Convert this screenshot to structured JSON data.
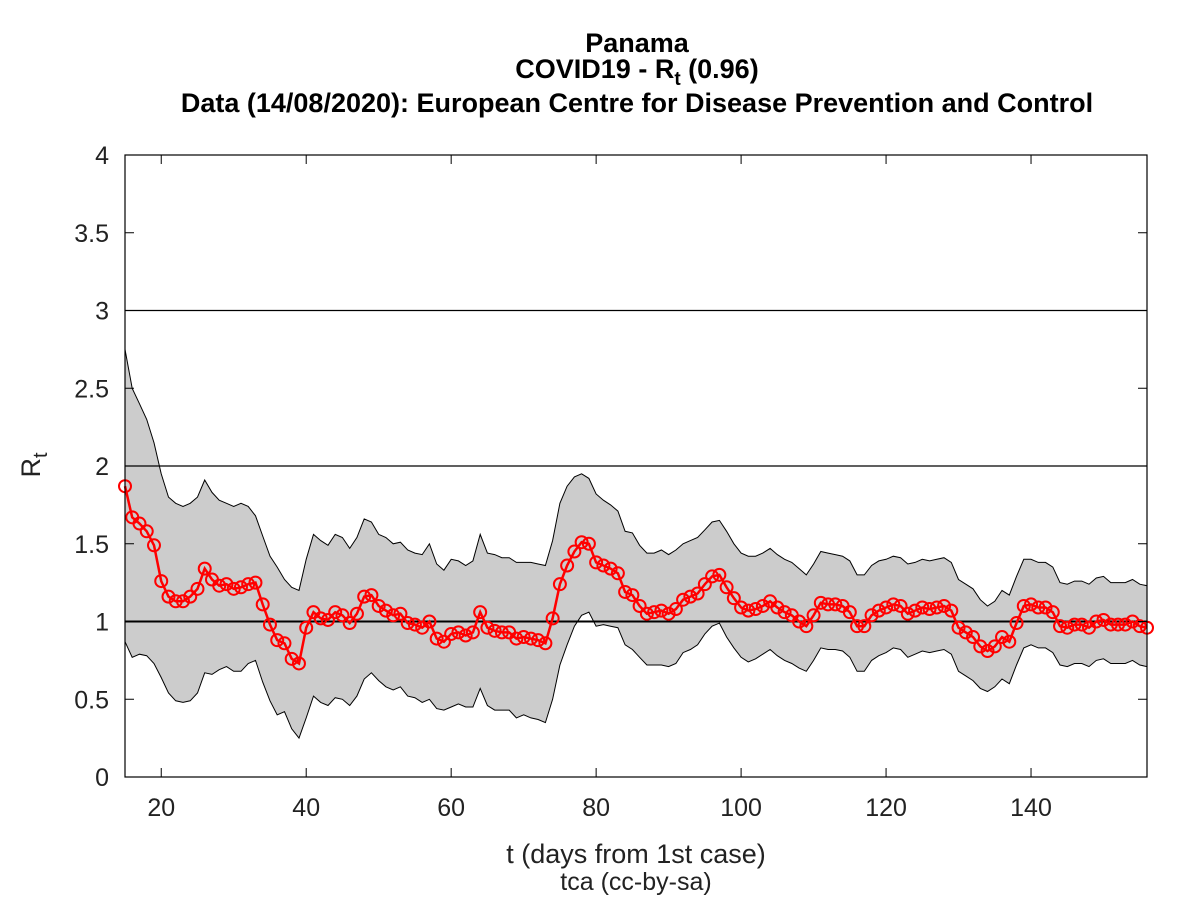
{
  "chart_data": {
    "type": "line",
    "title_lines": [
      "Panama",
      "Data (14/08/2020): European Centre for Disease Prevention and Control"
    ],
    "title_rt": {
      "prefix": "COVID19 - R",
      "sub": "t",
      "suffix": " (0.96)"
    },
    "xlabel": "t (days from 1st case)",
    "ylabel": {
      "main": "R",
      "sub": "t"
    },
    "credit": "tca (cc-by-sa)",
    "xlim": [
      15,
      156
    ],
    "ylim": [
      0,
      4
    ],
    "xticks": [
      20,
      40,
      60,
      80,
      100,
      120,
      140
    ],
    "yticks": [
      0,
      0.5,
      1,
      1.5,
      2,
      2.5,
      3,
      3.5,
      4
    ],
    "ytick_labels": [
      "0",
      "0.5",
      "1",
      "1.5",
      "2",
      "2.5",
      "3",
      "3.5",
      "4"
    ],
    "reference_lines": [
      1,
      2,
      3
    ],
    "colors": {
      "series": "#ff0000",
      "band": "#cccccc",
      "band_edge": "#000000",
      "reference": "#000000"
    },
    "x": [
      15,
      16,
      17,
      18,
      19,
      20,
      21,
      22,
      23,
      24,
      25,
      26,
      27,
      28,
      29,
      30,
      31,
      32,
      33,
      34,
      35,
      36,
      37,
      38,
      39,
      40,
      41,
      42,
      43,
      44,
      45,
      46,
      47,
      48,
      49,
      50,
      51,
      52,
      53,
      54,
      55,
      56,
      57,
      58,
      59,
      60,
      61,
      62,
      63,
      64,
      65,
      66,
      67,
      68,
      69,
      70,
      71,
      72,
      73,
      74,
      75,
      76,
      77,
      78,
      79,
      80,
      81,
      82,
      83,
      84,
      85,
      86,
      87,
      88,
      89,
      90,
      91,
      92,
      93,
      94,
      95,
      96,
      97,
      98,
      99,
      100,
      101,
      102,
      103,
      104,
      105,
      106,
      107,
      108,
      109,
      110,
      111,
      112,
      113,
      114,
      115,
      116,
      117,
      118,
      119,
      120,
      121,
      122,
      123,
      124,
      125,
      126,
      127,
      128,
      129,
      130,
      131,
      132,
      133,
      134,
      135,
      136,
      137,
      138,
      139,
      140,
      141,
      142,
      143,
      144,
      145,
      146,
      147,
      148,
      149,
      150,
      151,
      152,
      153,
      154,
      155,
      156
    ],
    "series": [
      {
        "values": [
          1.87,
          1.67,
          1.63,
          1.58,
          1.49,
          1.26,
          1.16,
          1.13,
          1.13,
          1.16,
          1.21,
          1.34,
          1.27,
          1.23,
          1.24,
          1.21,
          1.22,
          1.24,
          1.25,
          1.11,
          0.98,
          0.88,
          0.86,
          0.76,
          0.73,
          0.96,
          1.06,
          1.02,
          1.01,
          1.06,
          1.04,
          0.99,
          1.05,
          1.16,
          1.17,
          1.1,
          1.07,
          1.04,
          1.05,
          0.99,
          0.98,
          0.96,
          1.0,
          0.89,
          0.87,
          0.92,
          0.93,
          0.91,
          0.93,
          1.06,
          0.96,
          0.94,
          0.93,
          0.93,
          0.89,
          0.9,
          0.89,
          0.88,
          0.86,
          1.02,
          1.24,
          1.36,
          1.45,
          1.51,
          1.5,
          1.38,
          1.36,
          1.34,
          1.31,
          1.19,
          1.17,
          1.1,
          1.05,
          1.06,
          1.07,
          1.05,
          1.08,
          1.14,
          1.16,
          1.18,
          1.24,
          1.29,
          1.3,
          1.22,
          1.15,
          1.09,
          1.07,
          1.08,
          1.1,
          1.13,
          1.09,
          1.06,
          1.04,
          1.0,
          0.97,
          1.04,
          1.12,
          1.11,
          1.11,
          1.1,
          1.06,
          0.97,
          0.97,
          1.04,
          1.07,
          1.09,
          1.11,
          1.1,
          1.05,
          1.07,
          1.09,
          1.08,
          1.09,
          1.1,
          1.07,
          0.96,
          0.93,
          0.9,
          0.84,
          0.81,
          0.84,
          0.9,
          0.87,
          0.99,
          1.1,
          1.11,
          1.09,
          1.09,
          1.06,
          0.97,
          0.96,
          0.98,
          0.98,
          0.96,
          1.0,
          1.01,
          0.98,
          0.98,
          0.98,
          1.0,
          0.97,
          0.96
        ]
      }
    ],
    "band_upper": [
      2.75,
      2.5,
      2.4,
      2.3,
      2.15,
      1.95,
      1.8,
      1.76,
      1.74,
      1.76,
      1.8,
      1.91,
      1.83,
      1.78,
      1.76,
      1.74,
      1.76,
      1.74,
      1.68,
      1.55,
      1.42,
      1.35,
      1.27,
      1.22,
      1.2,
      1.4,
      1.56,
      1.52,
      1.49,
      1.56,
      1.54,
      1.47,
      1.54,
      1.66,
      1.64,
      1.56,
      1.54,
      1.5,
      1.51,
      1.46,
      1.44,
      1.43,
      1.5,
      1.37,
      1.33,
      1.4,
      1.39,
      1.36,
      1.39,
      1.56,
      1.44,
      1.43,
      1.41,
      1.41,
      1.38,
      1.38,
      1.38,
      1.37,
      1.36,
      1.52,
      1.76,
      1.87,
      1.93,
      1.95,
      1.92,
      1.82,
      1.78,
      1.75,
      1.71,
      1.58,
      1.57,
      1.49,
      1.44,
      1.44,
      1.46,
      1.43,
      1.46,
      1.5,
      1.52,
      1.54,
      1.59,
      1.64,
      1.65,
      1.58,
      1.5,
      1.44,
      1.42,
      1.42,
      1.44,
      1.47,
      1.43,
      1.4,
      1.38,
      1.34,
      1.3,
      1.37,
      1.45,
      1.44,
      1.43,
      1.42,
      1.39,
      1.3,
      1.3,
      1.36,
      1.39,
      1.4,
      1.42,
      1.41,
      1.37,
      1.38,
      1.4,
      1.39,
      1.4,
      1.41,
      1.38,
      1.27,
      1.24,
      1.21,
      1.14,
      1.1,
      1.13,
      1.2,
      1.17,
      1.29,
      1.4,
      1.4,
      1.38,
      1.38,
      1.35,
      1.25,
      1.24,
      1.26,
      1.26,
      1.24,
      1.28,
      1.29,
      1.25,
      1.25,
      1.25,
      1.27,
      1.24,
      1.23
    ],
    "band_lower": [
      0.87,
      0.77,
      0.79,
      0.78,
      0.73,
      0.64,
      0.54,
      0.49,
      0.48,
      0.49,
      0.54,
      0.67,
      0.66,
      0.69,
      0.71,
      0.68,
      0.68,
      0.73,
      0.75,
      0.61,
      0.49,
      0.4,
      0.42,
      0.31,
      0.25,
      0.38,
      0.52,
      0.48,
      0.46,
      0.51,
      0.5,
      0.46,
      0.52,
      0.63,
      0.67,
      0.62,
      0.58,
      0.56,
      0.58,
      0.52,
      0.51,
      0.48,
      0.5,
      0.44,
      0.43,
      0.45,
      0.47,
      0.45,
      0.45,
      0.57,
      0.46,
      0.43,
      0.43,
      0.43,
      0.38,
      0.4,
      0.38,
      0.37,
      0.35,
      0.5,
      0.72,
      0.85,
      0.97,
      1.04,
      1.06,
      0.97,
      0.98,
      0.97,
      0.96,
      0.85,
      0.82,
      0.77,
      0.72,
      0.72,
      0.72,
      0.71,
      0.73,
      0.8,
      0.82,
      0.85,
      0.92,
      0.97,
      0.99,
      0.9,
      0.83,
      0.77,
      0.74,
      0.76,
      0.79,
      0.82,
      0.78,
      0.75,
      0.73,
      0.7,
      0.68,
      0.75,
      0.83,
      0.82,
      0.82,
      0.81,
      0.77,
      0.68,
      0.68,
      0.75,
      0.78,
      0.8,
      0.83,
      0.82,
      0.77,
      0.79,
      0.81,
      0.8,
      0.81,
      0.82,
      0.79,
      0.68,
      0.65,
      0.62,
      0.57,
      0.55,
      0.58,
      0.63,
      0.6,
      0.72,
      0.83,
      0.85,
      0.83,
      0.83,
      0.8,
      0.72,
      0.71,
      0.73,
      0.73,
      0.71,
      0.75,
      0.76,
      0.73,
      0.73,
      0.73,
      0.75,
      0.72,
      0.71
    ]
  }
}
